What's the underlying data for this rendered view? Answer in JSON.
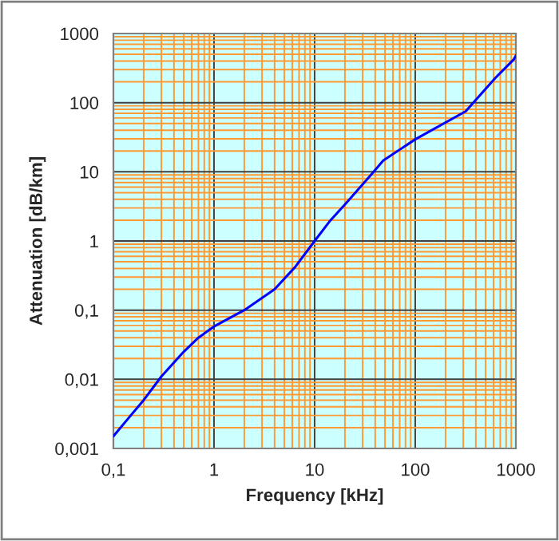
{
  "chart_data": {
    "type": "line",
    "xlabel": "Frequency [kHz]",
    "ylabel": "Attenuation [dB/km]",
    "log": "xy",
    "grid": true,
    "legend": false,
    "marker": "none",
    "line_style": "solid",
    "xlim": [
      0.1,
      1000
    ],
    "ylim": [
      0.001,
      1000
    ],
    "xticks": [
      {
        "value": 0.1,
        "label": "0,1"
      },
      {
        "value": 0.2,
        "label": null
      },
      {
        "value": 0.3,
        "label": null
      },
      {
        "value": 0.4,
        "label": null
      },
      {
        "value": 0.5,
        "label": null
      },
      {
        "value": 0.6,
        "label": null
      },
      {
        "value": 0.7,
        "label": null
      },
      {
        "value": 0.8,
        "label": null
      },
      {
        "value": 0.9,
        "label": null
      },
      1,
      {
        "value": 2,
        "label": null
      },
      {
        "value": 3,
        "label": null
      },
      {
        "value": 4,
        "label": null
      },
      {
        "value": 5,
        "label": null
      },
      {
        "value": 6,
        "label": null
      },
      {
        "value": 7,
        "label": null
      },
      {
        "value": 8,
        "label": null
      },
      {
        "value": 9,
        "label": null
      },
      10,
      {
        "value": 20,
        "label": null
      },
      {
        "value": 30,
        "label": null
      },
      {
        "value": 40,
        "label": null
      },
      {
        "value": 50,
        "label": null
      },
      {
        "value": 60,
        "label": null
      },
      {
        "value": 70,
        "label": null
      },
      {
        "value": 80,
        "label": null
      },
      {
        "value": 90,
        "label": null
      },
      100,
      {
        "value": 200,
        "label": null
      },
      {
        "value": 300,
        "label": null
      },
      {
        "value": 400,
        "label": null
      },
      {
        "value": 500,
        "label": null
      },
      {
        "value": 600,
        "label": null
      },
      {
        "value": 700,
        "label": null
      },
      {
        "value": 800,
        "label": null
      },
      {
        "value": 900,
        "label": null
      },
      1000
    ],
    "yticks": [
      {
        "value": 0.001,
        "label": "0,001"
      },
      {
        "value": 0.002,
        "label": null
      },
      {
        "value": 0.003,
        "label": null
      },
      {
        "value": 0.004,
        "label": null
      },
      {
        "value": 0.005,
        "label": null
      },
      {
        "value": 0.006,
        "label": null
      },
      {
        "value": 0.007,
        "label": null
      },
      {
        "value": 0.008,
        "label": null
      },
      {
        "value": 0.009,
        "label": null
      },
      {
        "value": 0.01,
        "label": "0,01"
      },
      {
        "value": 0.02,
        "label": null
      },
      {
        "value": 0.03,
        "label": null
      },
      {
        "value": 0.04,
        "label": null
      },
      {
        "value": 0.05,
        "label": null
      },
      {
        "value": 0.06,
        "label": null
      },
      {
        "value": 0.07,
        "label": null
      },
      {
        "value": 0.08,
        "label": null
      },
      {
        "value": 0.09,
        "label": null
      },
      {
        "value": 0.1,
        "label": "0,1"
      },
      {
        "value": 0.2,
        "label": null
      },
      {
        "value": 0.3,
        "label": null
      },
      {
        "value": 0.4,
        "label": null
      },
      {
        "value": 0.5,
        "label": null
      },
      {
        "value": 0.6,
        "label": null
      },
      {
        "value": 0.7,
        "label": null
      },
      {
        "value": 0.8,
        "label": null
      },
      {
        "value": 0.9,
        "label": null
      },
      1,
      {
        "value": 2,
        "label": null
      },
      {
        "value": 3,
        "label": null
      },
      {
        "value": 4,
        "label": null
      },
      {
        "value": 5,
        "label": null
      },
      {
        "value": 6,
        "label": null
      },
      {
        "value": 7,
        "label": null
      },
      {
        "value": 8,
        "label": null
      },
      {
        "value": 9,
        "label": null
      },
      10,
      {
        "value": 20,
        "label": null
      },
      {
        "value": 30,
        "label": null
      },
      {
        "value": 40,
        "label": null
      },
      {
        "value": 50,
        "label": null
      },
      {
        "value": 60,
        "label": null
      },
      {
        "value": 70,
        "label": null
      },
      {
        "value": 80,
        "label": null
      },
      {
        "value": 90,
        "label": null
      },
      100,
      {
        "value": 200,
        "label": null
      },
      {
        "value": 300,
        "label": null
      },
      {
        "value": 400,
        "label": null
      },
      {
        "value": 500,
        "label": null
      },
      {
        "value": 600,
        "label": null
      },
      {
        "value": 700,
        "label": null
      },
      {
        "value": 800,
        "label": null
      },
      {
        "value": 900,
        "label": null
      },
      1000
    ],
    "series": [
      {
        "color": "#0000ff",
        "x": [
          0.1,
          0.14,
          0.2,
          0.3,
          0.5,
          0.7,
          1,
          2,
          4,
          6.4,
          10,
          14,
          20.5,
          37,
          48,
          100,
          317,
          622,
          950,
          1000
        ],
        "values": [
          0.0015,
          0.0027,
          0.005,
          0.011,
          0.025,
          0.04,
          0.058,
          0.1,
          0.2,
          0.42,
          1,
          1.9,
          3.5,
          9.3,
          14.5,
          29.5,
          75,
          226,
          420,
          480
        ]
      }
    ]
  }
}
